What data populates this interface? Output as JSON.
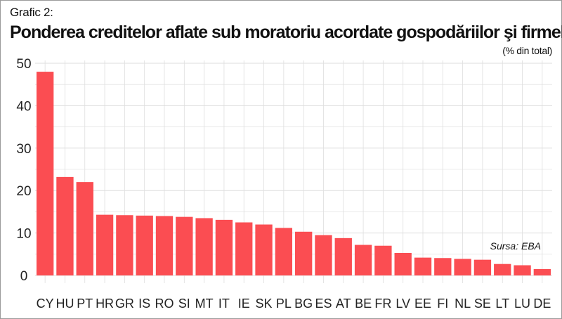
{
  "header": {
    "figure_label": "Grafic 2:",
    "title": "Ponderea creditelor aflate sub moratoriu acordate gospodăriilor şi firmelor",
    "unit": "(% din total)"
  },
  "source": "Sursa: EBA",
  "colors": {
    "bar": "#fb4d52",
    "grid": "#dedede",
    "axis_text": "#222222"
  },
  "chart_data": {
    "type": "bar",
    "title": "Ponderea creditelor aflate sub moratoriu acordate gospodăriilor şi firmelor",
    "ylabel": "(% din total)",
    "xlabel": "",
    "ylim": [
      0,
      50
    ],
    "yticks": [
      0,
      10,
      20,
      30,
      40,
      50
    ],
    "grid": true,
    "legend": "none",
    "categories": [
      "CY",
      "HU",
      "PT",
      "HR",
      "GR",
      "IS",
      "RO",
      "SI",
      "MT",
      "IT",
      "IE",
      "SK",
      "PL",
      "BG",
      "ES",
      "AT",
      "BE",
      "FR",
      "LV",
      "EE",
      "FI",
      "NL",
      "SE",
      "LT",
      "LU",
      "DE"
    ],
    "values": [
      48.0,
      23.2,
      22.0,
      14.3,
      14.2,
      14.1,
      14.0,
      13.8,
      13.5,
      13.1,
      12.5,
      12.0,
      11.2,
      10.3,
      9.5,
      8.8,
      7.2,
      7.0,
      5.3,
      4.2,
      4.1,
      3.9,
      3.7,
      2.7,
      2.4,
      1.5
    ]
  }
}
